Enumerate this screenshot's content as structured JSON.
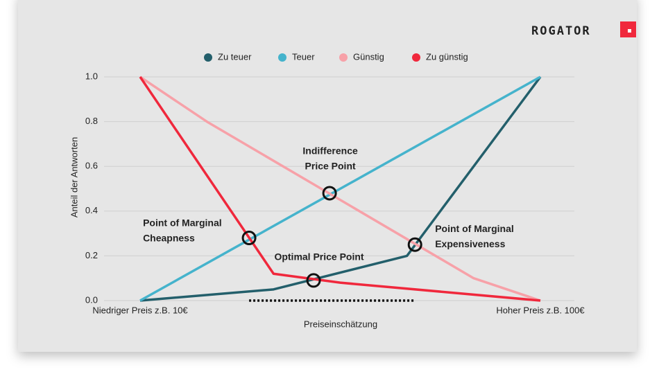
{
  "logo": "ROGATOR",
  "chart_data": {
    "type": "line",
    "xlabel": "Preiseinschätzung",
    "ylabel": "Anteil der Antworten",
    "xlim": [
      10,
      100
    ],
    "ylim": [
      0,
      1
    ],
    "xticks": [
      {
        "value": 10,
        "label": "Niedriger Preis z.B. 10€"
      },
      {
        "value": 100,
        "label": "Hoher Preis z.B. 100€"
      }
    ],
    "yticks": [
      {
        "value": 0,
        "label": "0.0"
      },
      {
        "value": 0.2,
        "label": "0.2"
      },
      {
        "value": 0.4,
        "label": "0.4"
      },
      {
        "value": 0.6,
        "label": "0.6"
      },
      {
        "value": 0.8,
        "label": "0.8"
      },
      {
        "value": 1,
        "label": "1.0"
      }
    ],
    "grid": true,
    "legend": "top",
    "series": [
      {
        "name": "Zu teuer",
        "color": "#235f6b",
        "x": [
          10,
          40,
          70,
          100
        ],
        "values": [
          0,
          0.05,
          0.2,
          1
        ]
      },
      {
        "name": "Teuer",
        "color": "#45b3cc",
        "x": [
          10,
          100
        ],
        "values": [
          0,
          1
        ]
      },
      {
        "name": "Günstig",
        "color": "#f7a1a8",
        "x": [
          10,
          25,
          85,
          100
        ],
        "values": [
          1,
          0.8,
          0.1,
          0
        ]
      },
      {
        "name": "Zu günstig",
        "color": "#f0283c",
        "x": [
          10,
          40,
          55,
          100
        ],
        "values": [
          1,
          0.12,
          0.08,
          0
        ]
      }
    ],
    "annotations": [
      {
        "label": [
          "Point of Marginal",
          "Cheapness"
        ],
        "x": 34.5,
        "y": 0.28
      },
      {
        "label": [
          "Indifference",
          "Price Point"
        ],
        "x": 52.6,
        "y": 0.48
      },
      {
        "label": [
          "Optimal Price Point"
        ],
        "x": 49,
        "y": 0.09
      },
      {
        "label": [
          "Point of Marginal",
          "Expensiveness"
        ],
        "x": 71.8,
        "y": 0.25
      }
    ]
  }
}
